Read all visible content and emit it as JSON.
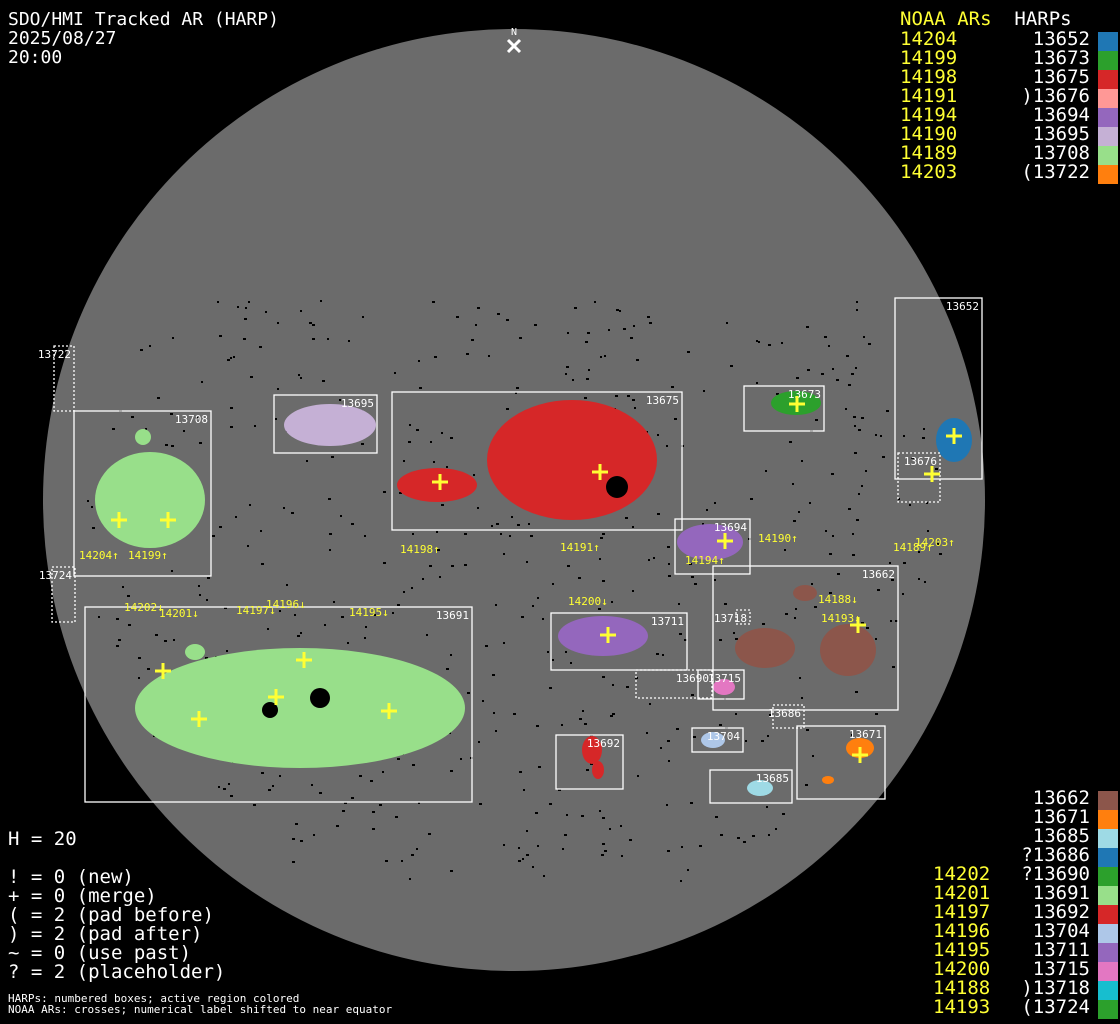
{
  "header": {
    "title": "SDO/HMI Tracked AR (HARP)",
    "date": "2025/08/27",
    "time": "20:00",
    "north_label": "N"
  },
  "legend_top": {
    "noaa_header": "NOAA ARs",
    "harp_header": "HARPs",
    "rows": [
      {
        "noaa": "14204",
        "harp": "13652",
        "color": "#1f77b4"
      },
      {
        "noaa": "14199",
        "harp": "13673",
        "color": "#2ca02c"
      },
      {
        "noaa": "14198",
        "harp": "13675",
        "color": "#d62728"
      },
      {
        "noaa": "14191",
        "harp": ")13676",
        "color": "#ff9896"
      },
      {
        "noaa": "14194",
        "harp": "13694",
        "color": "#9467bd"
      },
      {
        "noaa": "14190",
        "harp": "13695",
        "color": "#c5b0d5"
      },
      {
        "noaa": "14189",
        "harp": "13708",
        "color": "#98df8a"
      },
      {
        "noaa": "14203",
        "harp": "(13722",
        "color": "#ff7f0e"
      }
    ]
  },
  "legend_bottom": {
    "rows": [
      {
        "noaa": "",
        "harp": "13662",
        "color": "#8c564b"
      },
      {
        "noaa": "",
        "harp": "13671",
        "color": "#ff7f0e"
      },
      {
        "noaa": "",
        "harp": "13685",
        "color": "#9edae5"
      },
      {
        "noaa": "",
        "harp": "?13686",
        "color": "#1f77b4"
      },
      {
        "noaa": "14202",
        "harp": "?13690",
        "color": "#2ca02c"
      },
      {
        "noaa": "14201",
        "harp": "13691",
        "color": "#98df8a"
      },
      {
        "noaa": "14197",
        "harp": "13692",
        "color": "#d62728"
      },
      {
        "noaa": "14196",
        "harp": "13704",
        "color": "#aec7e8"
      },
      {
        "noaa": "14195",
        "harp": "13711",
        "color": "#9467bd"
      },
      {
        "noaa": "14200",
        "harp": "13715",
        "color": "#e377c2"
      },
      {
        "noaa": "14188",
        "harp": ")13718",
        "color": "#17becf"
      },
      {
        "noaa": "14193",
        "harp": "(13724",
        "color": "#2ca02c"
      }
    ]
  },
  "stats": {
    "h": "H = 20",
    "lines": [
      "! = 0 (new)",
      "+ = 0 (merge)",
      "( = 2 (pad before)",
      ") = 2 (pad after)",
      "~ = 0 (use past)",
      "? = 2 (placeholder)"
    ],
    "note1": "HARPs: numbered boxes; active region colored",
    "note2": "NOAA ARs: crosses; numerical label shifted to near equator"
  },
  "disk": {
    "harp_boxes": [
      "13652",
      "13722",
      "13708",
      "13695",
      "13675",
      "13673",
      "13676",
      "13694",
      "13724",
      "13691",
      "13711",
      "13662",
      "13718",
      "13690",
      "13715",
      "13686",
      "13704",
      "13671",
      "13685",
      "13692"
    ],
    "noaa_labels": [
      "14204↑",
      "14199↑",
      "14198↑",
      "14191↑",
      "14190↑",
      "14189↑",
      "14203↑",
      "14194↑",
      "14188↓",
      "14193↓",
      "14200↓",
      "14202↓",
      "14201↓",
      "14197↓",
      "14196↓",
      "14195↓"
    ]
  },
  "colors": {
    "disk": "#6b6b6b",
    "noaa_text": "#ffff33",
    "background": "#000000"
  }
}
